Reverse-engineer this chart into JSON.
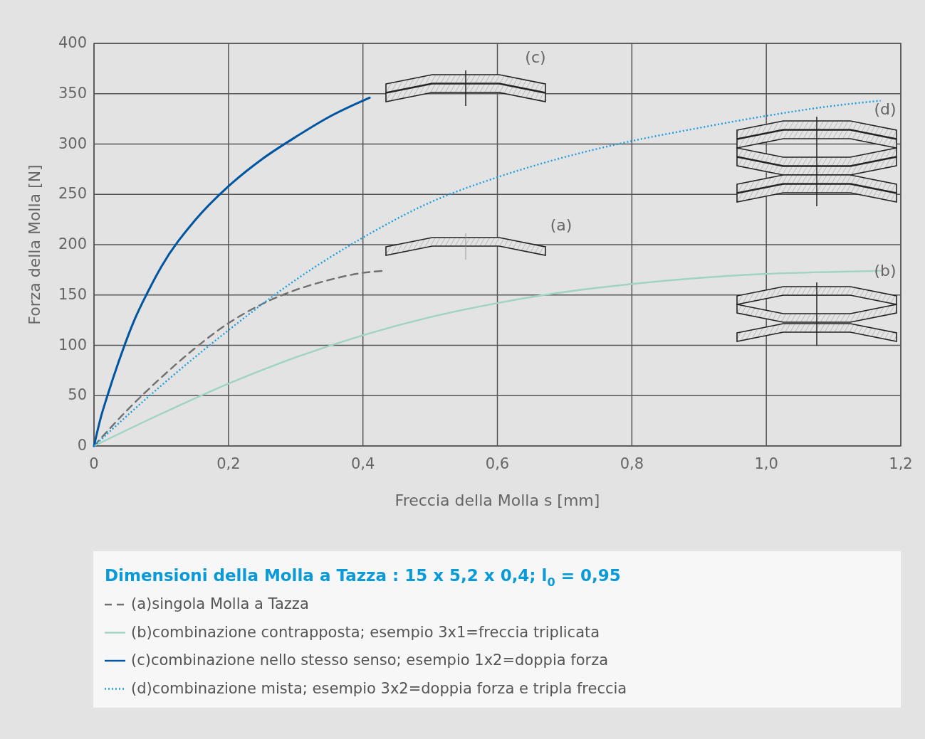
{
  "chart_data": {
    "type": "line",
    "xlabel": "Freccia della Molla s [mm]",
    "ylabel": "Forza della Molla [N]",
    "legend_title": "Dimensioni della Molla a Tazza : 15 x 5,2 x 0,4; l$_{0}$ = 0,95",
    "legend": "bottom",
    "grid": true,
    "xlim": [
      0,
      1.2
    ],
    "xticks": [
      0,
      {
        "value": 0.2,
        "label": "0,2"
      },
      {
        "value": 0.4,
        "label": "0,4"
      },
      {
        "value": 0.6,
        "label": "0,6"
      },
      {
        "value": 0.8,
        "label": "0,8"
      },
      {
        "value": 1.0,
        "label": "1,0"
      },
      {
        "value": 1.2,
        "label": "1,2"
      }
    ],
    "ylim": [
      0,
      400
    ],
    "yticks": [
      0,
      50,
      100,
      150,
      200,
      250,
      300,
      350,
      400
    ],
    "series": [
      {
        "name": "(a)singola Molla a Tazza",
        "color": "#707070",
        "line_style": "dashed",
        "x": [
          0,
          0.05,
          0.1,
          0.15,
          0.2,
          0.25,
          0.3,
          0.35,
          0.4,
          0.43
        ],
        "values": [
          0,
          36,
          68,
          97,
          122,
          141,
          155,
          165,
          172,
          174
        ]
      },
      {
        "name": "(b)combinazione contrapposta; esempio 3x1=freccia triplicata",
        "color": "#9fd3c3",
        "line_style": "solid",
        "x": [
          0,
          0.1,
          0.2,
          0.3,
          0.4,
          0.5,
          0.6,
          0.7,
          0.8,
          0.9,
          1.0,
          1.1,
          1.17
        ],
        "values": [
          0,
          32,
          62,
          88,
          110,
          128,
          142,
          153,
          161,
          167,
          171,
          173,
          174
        ]
      },
      {
        "name": "(c)combinazione nello stesso senso; esempio 1x2=doppia forza",
        "color": "#0055a0",
        "line_style": "solid",
        "x": [
          0,
          0.01,
          0.02,
          0.04,
          0.06,
          0.08,
          0.1,
          0.15,
          0.2,
          0.25,
          0.3,
          0.35,
          0.41
        ],
        "values": [
          0,
          28,
          50,
          90,
          125,
          153,
          178,
          224,
          258,
          285,
          307,
          327,
          346
        ]
      },
      {
        "name": "(d)combinazione mista; esempio 3x2=doppia forza e tripla freccia",
        "color": "#1a9ee0",
        "line_style": "dotted",
        "x": [
          0,
          0.1,
          0.2,
          0.3,
          0.4,
          0.5,
          0.6,
          0.7,
          0.8,
          0.9,
          1.0,
          1.1,
          1.17
        ],
        "values": [
          0,
          60,
          115,
          165,
          207,
          242,
          267,
          287,
          303,
          316,
          328,
          338,
          343
        ]
      }
    ],
    "annotations": [
      "(c)",
      "(d)",
      "(a)",
      "(b)"
    ]
  }
}
